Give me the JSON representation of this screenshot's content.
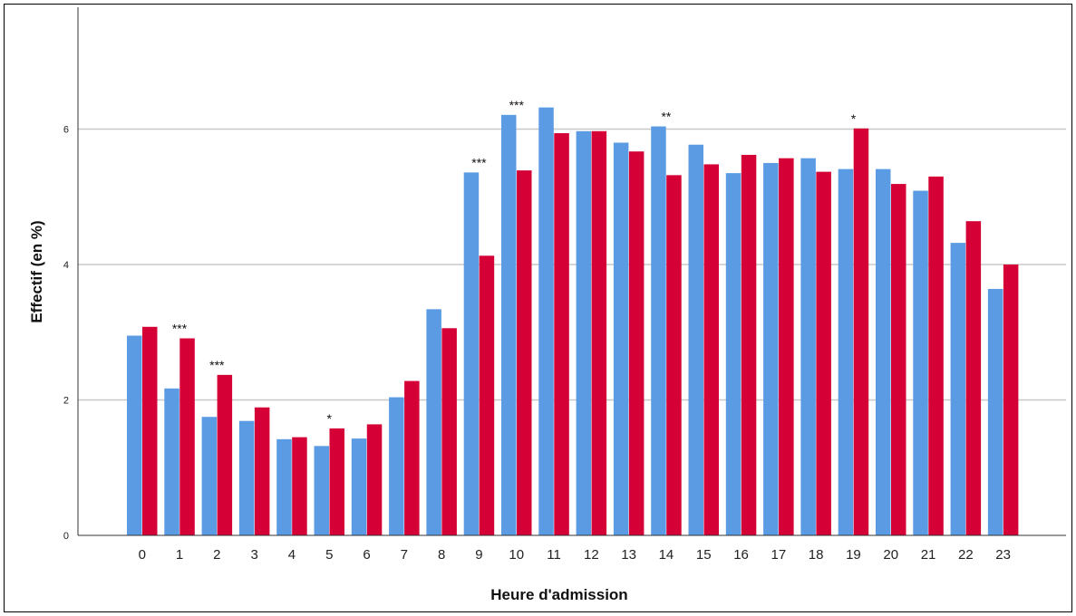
{
  "chart_data": {
    "type": "bar",
    "title": "",
    "xlabel": "Heure d'admission",
    "ylabel": "Effectif (en %)",
    "ylim": [
      0,
      7.8
    ],
    "yticks": [
      "0",
      "2",
      "4",
      "6"
    ],
    "grid": "horizontal",
    "legend": "none",
    "categories": [
      "0",
      "1",
      "2",
      "3",
      "4",
      "5",
      "6",
      "7",
      "8",
      "9",
      "10",
      "11",
      "12",
      "13",
      "14",
      "15",
      "16",
      "17",
      "18",
      "19",
      "20",
      "21",
      "22",
      "23"
    ],
    "series": [
      {
        "color": "#5b9be3",
        "values": [
          2.95,
          2.17,
          1.75,
          1.69,
          1.42,
          1.32,
          1.43,
          2.04,
          3.34,
          5.36,
          6.21,
          6.32,
          5.97,
          5.8,
          6.04,
          5.77,
          5.35,
          5.5,
          5.57,
          5.41,
          5.41,
          5.09,
          4.32,
          3.64
        ]
      },
      {
        "color": "#d40036",
        "values": [
          3.08,
          2.91,
          2.37,
          1.89,
          1.45,
          1.58,
          1.64,
          2.28,
          3.06,
          4.13,
          5.39,
          5.94,
          5.97,
          5.67,
          5.32,
          5.48,
          5.62,
          5.57,
          5.37,
          6.01,
          5.19,
          5.3,
          4.64,
          4.0
        ]
      }
    ],
    "annotations": [
      {
        "category": "1",
        "text": "***"
      },
      {
        "category": "2",
        "text": "***"
      },
      {
        "category": "5",
        "text": "*"
      },
      {
        "category": "9",
        "text": "***"
      },
      {
        "category": "10",
        "text": "***"
      },
      {
        "category": "14",
        "text": "**"
      },
      {
        "category": "19",
        "text": "*"
      }
    ]
  }
}
